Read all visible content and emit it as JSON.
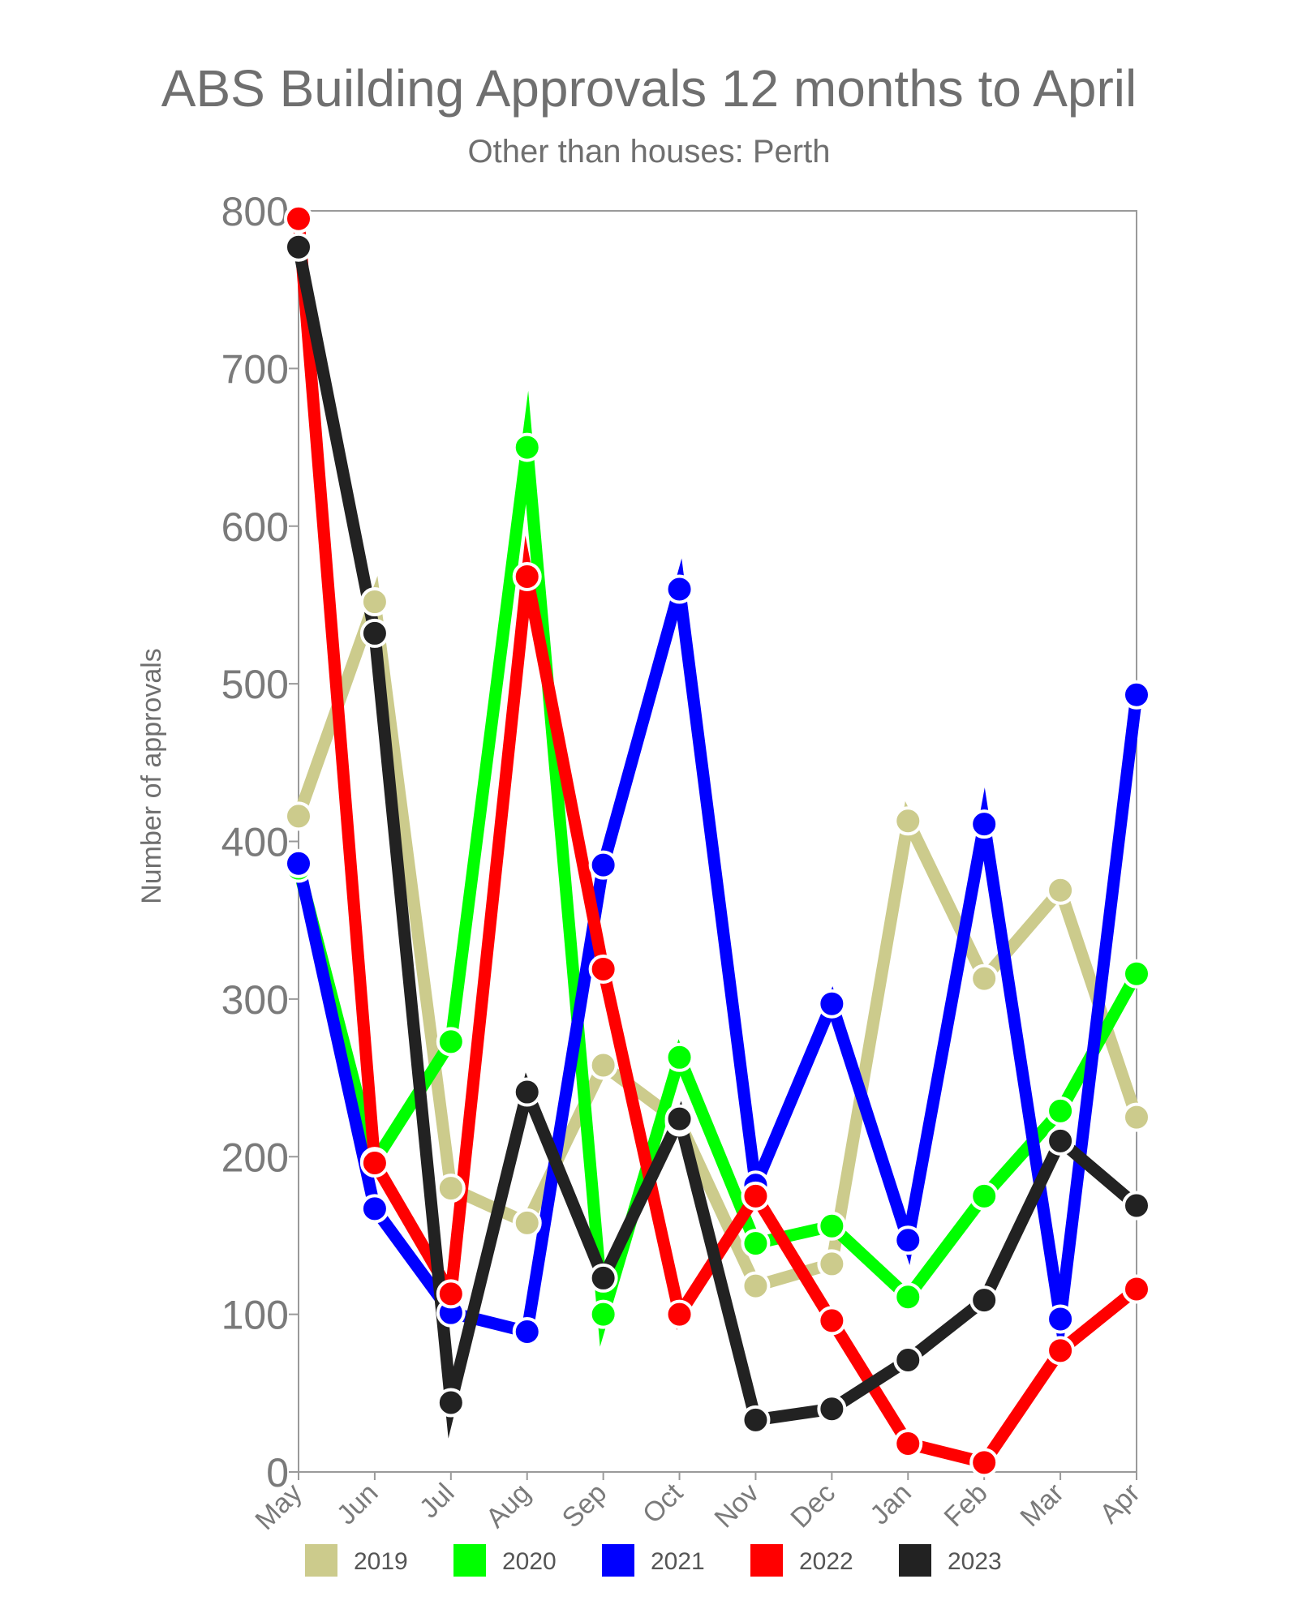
{
  "chart_data": {
    "type": "line",
    "title": "ABS Building Approvals 12 months to April",
    "subtitle": "Other than houses: Perth",
    "xlabel": "",
    "ylabel": "Number of approvals",
    "categories": [
      "May",
      "Jun",
      "Jul",
      "Aug",
      "Sep",
      "Oct",
      "Nov",
      "Dec",
      "Jan",
      "Feb",
      "Mar",
      "Apr"
    ],
    "y_ticks": [
      "0",
      "100",
      "200",
      "300",
      "400",
      "500",
      "600",
      "700",
      "800"
    ],
    "ylim": [
      0,
      800
    ],
    "legend_position": "bottom",
    "grid": false,
    "series": [
      {
        "name": "2019",
        "color": "#cccb8c",
        "values": [
          416,
          552,
          180,
          158,
          258,
          222,
          118,
          132,
          413,
          313,
          369,
          225
        ]
      },
      {
        "name": "2020",
        "color": "#00ff00",
        "values": [
          383,
          197,
          273,
          650,
          100,
          263,
          145,
          156,
          111,
          175,
          229,
          316
        ]
      },
      {
        "name": "2021",
        "color": "#0000ff",
        "values": [
          386,
          167,
          101,
          89,
          385,
          560,
          182,
          297,
          147,
          411,
          97,
          493
        ]
      },
      {
        "name": "2022",
        "color": "#ff0000",
        "values": [
          795,
          196,
          113,
          568,
          319,
          100,
          175,
          96,
          18,
          6,
          77,
          116
        ]
      },
      {
        "name": "2023",
        "color": "#222222",
        "values": [
          777,
          532,
          44,
          241,
          123,
          224,
          33,
          40,
          71,
          109,
          210,
          169
        ]
      }
    ]
  }
}
